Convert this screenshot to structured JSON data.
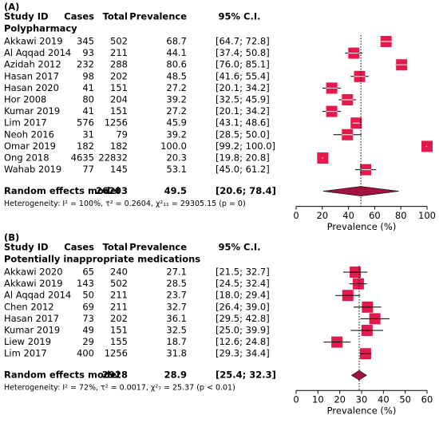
{
  "chart_data": [
    {
      "type": "forest",
      "panel": "(A)",
      "columns": [
        "Study ID",
        "Cases",
        "Total",
        "Prevalence",
        "95% C.I."
      ],
      "subgroup": "Polypharmacy",
      "categories": [
        "Akkawi 2019",
        "Al Aqqad 2014",
        "Azidah 2012",
        "Hasan 2017",
        "Hasan 2020",
        "Hor 2008",
        "Kumar 2019",
        "Lim 2017",
        "Neoh 2016",
        "Omar 2019",
        "Ong 2018",
        "Wahab 2019"
      ],
      "cases": [
        345,
        93,
        232,
        98,
        41,
        80,
        41,
        576,
        31,
        182,
        4635,
        77
      ],
      "totals": [
        502,
        211,
        288,
        202,
        151,
        204,
        151,
        1256,
        79,
        182,
        22832,
        145
      ],
      "values": [
        68.7,
        44.1,
        80.6,
        48.5,
        27.2,
        39.2,
        27.2,
        45.9,
        39.2,
        100.0,
        20.3,
        53.1
      ],
      "value_labels": [
        "68.7",
        "44.1",
        "80.6",
        "48.5",
        "27.2",
        "39.2",
        "27.2",
        "45.9",
        "39.2",
        "100.0",
        "20.3",
        "53.1"
      ],
      "lower": [
        64.7,
        37.4,
        76.0,
        41.6,
        20.1,
        32.5,
        20.1,
        43.1,
        28.5,
        99.2,
        19.8,
        45.0
      ],
      "upper": [
        72.8,
        50.8,
        85.1,
        55.4,
        34.2,
        45.9,
        34.2,
        48.6,
        50.0,
        100.0,
        20.8,
        61.2
      ],
      "ci_labels": [
        "[64.7; 72.8]",
        "[37.4; 50.8]",
        "[76.0; 85.1]",
        "[41.6; 55.4]",
        "[20.1; 34.2]",
        "[32.5; 45.9]",
        "[20.1; 34.2]",
        "[43.1; 48.6]",
        "[28.5; 50.0]",
        "[99.2; 100.0]",
        "[19.8; 20.8]",
        "[45.0; 61.2]"
      ],
      "pooled": {
        "label": "Random effects model",
        "total": 26203,
        "value": 49.5,
        "lower": 20.6,
        "upper": 78.4,
        "ci_label": "[20.6; 78.4]"
      },
      "heterogeneity": "Heterogeneity: I² = 100%, τ² = 0.2604, χ²₁₁ = 29305.15 (p = 0)",
      "xlabel": "Prevalence (%)",
      "xlim": [
        0,
        100
      ],
      "xticks": [
        0,
        20,
        40,
        60,
        80,
        100
      ],
      "color": "#e31a4b",
      "pooled_color": "#a3123f"
    },
    {
      "type": "forest",
      "panel": "(B)",
      "columns": [
        "Study ID",
        "Cases",
        "Total",
        "Prevalence",
        "95% C.I."
      ],
      "subgroup": "Potentially inappropriate medications",
      "categories": [
        "Akkawi 2020",
        "Akkawi 2019",
        "Al Aqqad 2014",
        "Chen 2012",
        "Hasan 2017",
        "Kumar 2019",
        "Liew 2019",
        "Lim 2017"
      ],
      "cases": [
        65,
        143,
        50,
        69,
        73,
        49,
        29,
        400
      ],
      "totals": [
        240,
        502,
        211,
        211,
        202,
        151,
        155,
        1256
      ],
      "values": [
        27.1,
        28.5,
        23.7,
        32.7,
        36.1,
        32.5,
        18.7,
        31.8
      ],
      "lower": [
        21.5,
        24.5,
        18.0,
        26.4,
        29.5,
        25.0,
        12.6,
        29.3
      ],
      "upper": [
        32.7,
        32.4,
        29.4,
        39.0,
        42.8,
        39.9,
        24.8,
        34.4
      ],
      "ci_labels": [
        "[21.5; 32.7]",
        "[24.5; 32.4]",
        "[18.0; 29.4]",
        "[26.4; 39.0]",
        "[29.5; 42.8]",
        "[25.0; 39.9]",
        "[12.6; 24.8]",
        "[29.3; 34.4]"
      ],
      "pooled": {
        "label": "Random effects model",
        "total": 2928,
        "value": 28.9,
        "lower": 25.4,
        "upper": 32.3,
        "ci_label": "[25.4; 32.3]"
      },
      "heterogeneity": "Heterogeneity: I² = 72%, τ² = 0.0017, χ²₇ = 25.37 (p < 0.01)",
      "xlabel": "Prevalence (%)",
      "xlim": [
        0,
        60
      ],
      "xticks": [
        0,
        10,
        20,
        30,
        40,
        50,
        60
      ],
      "color": "#e31a4b",
      "pooled_color": "#a3123f"
    }
  ]
}
